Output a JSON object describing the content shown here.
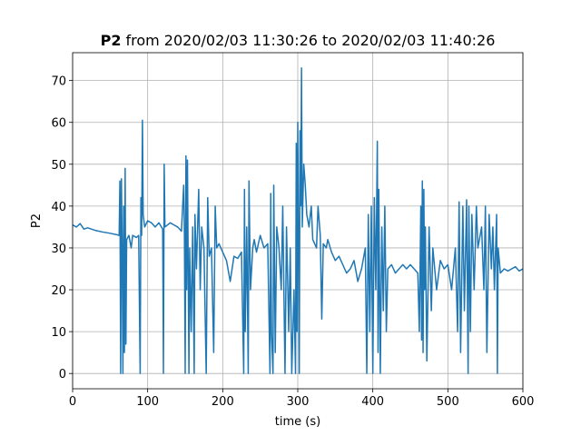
{
  "chart_data": {
    "type": "line",
    "title_name": "P2",
    "title_range": "from 2020/02/03 11:30:26 to 2020/02/03 11:40:26",
    "xlabel": "time (s)",
    "ylabel": "P2",
    "xlim": [
      0,
      600
    ],
    "ylim": [
      -3.65,
      76.65
    ],
    "xticks": [
      0,
      100,
      200,
      300,
      400,
      500,
      600
    ],
    "yticks": [
      0,
      10,
      20,
      30,
      40,
      50,
      60,
      70
    ],
    "grid": true,
    "series": [
      {
        "name": "P2",
        "color": "#1f77b4",
        "x": [
          0,
          5,
          10,
          15,
          20,
          30,
          40,
          50,
          58,
          62,
          63,
          64,
          65,
          66,
          67,
          68,
          69,
          70,
          71,
          72,
          75,
          78,
          80,
          85,
          88,
          90,
          91,
          92,
          93,
          94,
          96,
          100,
          105,
          110,
          115,
          120,
          121,
          122,
          123,
          130,
          135,
          140,
          145,
          148,
          149,
          150,
          151,
          152,
          153,
          155,
          156,
          158,
          160,
          162,
          163,
          165,
          168,
          170,
          172,
          175,
          178,
          180,
          182,
          185,
          188,
          190,
          192,
          195,
          200,
          205,
          210,
          215,
          220,
          225,
          228,
          229,
          230,
          232,
          234,
          235,
          237,
          240,
          242,
          245,
          250,
          255,
          260,
          263,
          264,
          265,
          267,
          268,
          270,
          272,
          275,
          278,
          280,
          283,
          285,
          288,
          290,
          292,
          295,
          297,
          298,
          299,
          300,
          301,
          302,
          303,
          304,
          305,
          306,
          308,
          310,
          312,
          315,
          318,
          320,
          325,
          327,
          330,
          332,
          334,
          338,
          340,
          345,
          350,
          355,
          360,
          365,
          370,
          375,
          380,
          385,
          390,
          392,
          394,
          396,
          398,
          400,
          402,
          404,
          406,
          407,
          408,
          410,
          412,
          414,
          416,
          418,
          420,
          425,
          430,
          435,
          440,
          445,
          450,
          455,
          460,
          462,
          464,
          465,
          466,
          467,
          468,
          469,
          470,
          472,
          475,
          478,
          480,
          485,
          490,
          495,
          500,
          505,
          510,
          513,
          515,
          517,
          520,
          522,
          525,
          527,
          528,
          530,
          532,
          535,
          538,
          540,
          545,
          548,
          550,
          552,
          555,
          558,
          560,
          562,
          565,
          566,
          567,
          570,
          575,
          580,
          585,
          590,
          595,
          600
        ],
        "values": [
          35.5,
          35,
          35.8,
          34.5,
          34.8,
          34.2,
          33.8,
          33.5,
          33.2,
          33,
          46,
          0,
          46.5,
          30,
          0,
          40,
          5,
          49,
          7,
          32,
          33,
          30,
          33,
          32.5,
          33,
          0,
          42,
          33,
          60.5,
          38,
          35,
          36.5,
          36,
          35,
          36,
          34.5,
          0,
          50,
          35,
          36,
          35.5,
          35,
          34,
          45,
          33,
          0,
          52,
          20,
          51,
          0,
          30,
          10,
          35,
          0,
          38,
          25,
          44,
          20,
          35,
          30,
          0,
          42,
          28,
          30,
          5,
          40,
          30,
          31,
          29,
          27,
          22,
          28,
          27.5,
          29,
          0,
          44,
          10,
          35,
          0,
          46,
          20,
          30,
          32,
          29,
          33,
          30,
          31,
          0,
          43,
          10,
          0,
          45,
          5,
          35,
          30,
          20,
          40,
          0,
          35,
          10,
          30,
          0,
          20,
          0,
          55,
          10,
          60,
          30,
          0,
          58,
          40,
          73,
          35,
          50,
          45,
          38,
          35,
          40,
          32,
          30,
          40,
          33,
          13,
          31,
          30,
          32,
          29,
          27,
          28,
          26,
          24,
          25,
          27,
          22,
          25,
          30,
          0,
          38,
          10,
          40,
          0,
          42,
          20,
          55.5,
          5,
          44,
          0,
          35,
          15,
          40,
          10,
          25,
          26,
          24,
          25,
          26,
          25,
          26,
          25,
          24,
          10,
          40,
          8,
          46,
          5,
          44,
          20,
          35,
          3,
          35,
          15,
          30,
          20,
          27,
          25,
          26,
          20,
          30,
          10,
          41,
          5,
          40,
          15,
          41.5,
          0,
          40,
          10,
          38,
          20,
          40,
          30,
          35,
          20,
          40,
          5,
          38,
          25,
          35,
          20,
          38,
          0,
          30,
          24,
          25,
          24.5,
          25,
          25.5,
          24.5,
          25
        ]
      }
    ]
  }
}
